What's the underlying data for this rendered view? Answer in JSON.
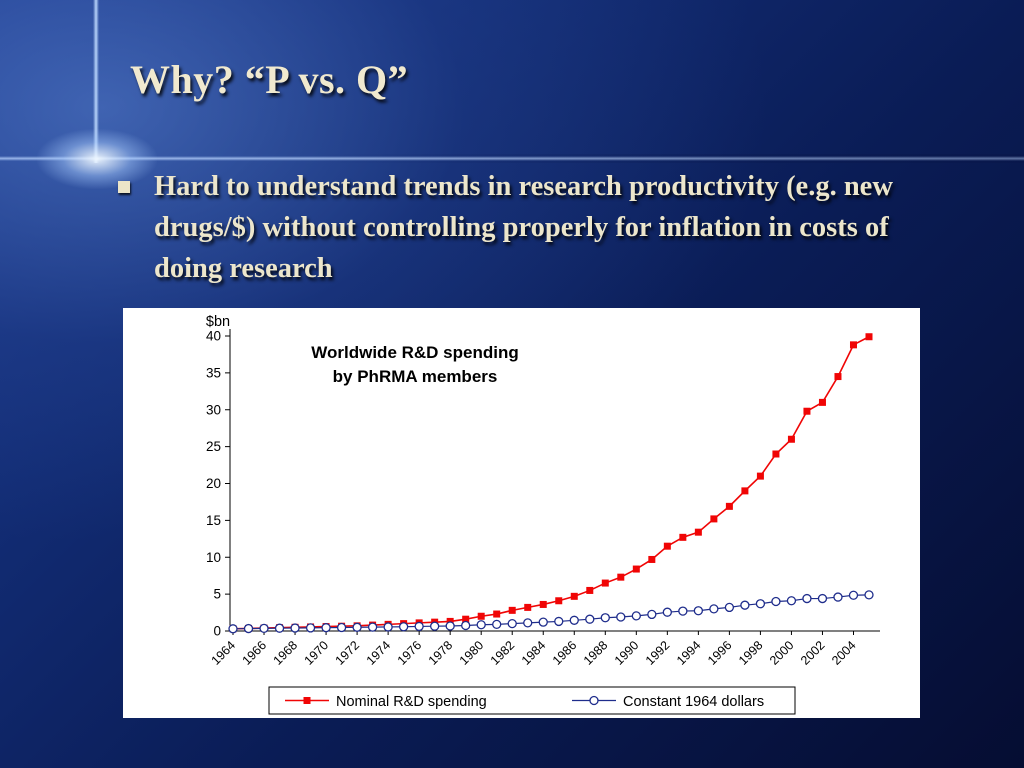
{
  "slide": {
    "title": "Why?  “P vs. Q”",
    "bullet": {
      "marker_icon": "square-bullet",
      "text": "Hard to understand trends in research productivity (e.g. new drugs/$) without controlling properly for inflation in costs of doing research"
    },
    "colors": {
      "title_text": "#F0E9CF",
      "background_navy": "#0B1C55"
    }
  },
  "chart_data": {
    "type": "line",
    "title": "Worldwide R&D spending\nby PhRMA members",
    "unit_label": "$bn",
    "xlabel": "",
    "ylabel": "$bn",
    "ylim": [
      0,
      40
    ],
    "yticks": [
      0,
      5,
      10,
      15,
      20,
      25,
      30,
      35,
      40
    ],
    "grid": false,
    "legend_position": "bottom",
    "x": [
      1964,
      1965,
      1966,
      1967,
      1968,
      1969,
      1970,
      1971,
      1972,
      1973,
      1974,
      1975,
      1976,
      1977,
      1978,
      1979,
      1980,
      1981,
      1982,
      1983,
      1984,
      1985,
      1986,
      1987,
      1988,
      1989,
      1990,
      1991,
      1992,
      1993,
      1994,
      1995,
      1996,
      1997,
      1998,
      1999,
      2000,
      2001,
      2002,
      2003,
      2004,
      2005
    ],
    "xtick_labels": [
      "1964",
      "1966",
      "1968",
      "1970",
      "1972",
      "1974",
      "1976",
      "1978",
      "1980",
      "1982",
      "1984",
      "1986",
      "1988",
      "1990",
      "1992",
      "1994",
      "1996",
      "1998",
      "2000",
      "2002",
      "2004"
    ],
    "series": [
      {
        "name": "Nominal R&D spending",
        "color": "#F00505",
        "marker": "square",
        "values": [
          0.3,
          0.35,
          0.4,
          0.45,
          0.5,
          0.55,
          0.6,
          0.65,
          0.7,
          0.8,
          0.9,
          1.0,
          1.1,
          1.2,
          1.3,
          1.6,
          2.0,
          2.3,
          2.8,
          3.2,
          3.6,
          4.1,
          4.7,
          5.5,
          6.5,
          7.3,
          8.4,
          9.7,
          11.5,
          12.7,
          13.4,
          15.2,
          16.9,
          19.0,
          21.0,
          24.0,
          26.0,
          29.8,
          31.0,
          34.5,
          38.8,
          39.9
        ]
      },
      {
        "name": "Constant 1964 dollars",
        "color": "#1F2D8C",
        "marker": "open-circle",
        "values": [
          0.3,
          0.33,
          0.36,
          0.38,
          0.4,
          0.42,
          0.45,
          0.47,
          0.5,
          0.53,
          0.55,
          0.58,
          0.62,
          0.65,
          0.68,
          0.75,
          0.85,
          0.9,
          1.0,
          1.1,
          1.2,
          1.3,
          1.45,
          1.6,
          1.8,
          1.9,
          2.05,
          2.25,
          2.55,
          2.7,
          2.75,
          3.0,
          3.2,
          3.5,
          3.7,
          4.0,
          4.1,
          4.4,
          4.4,
          4.6,
          4.85,
          4.9
        ]
      }
    ]
  }
}
